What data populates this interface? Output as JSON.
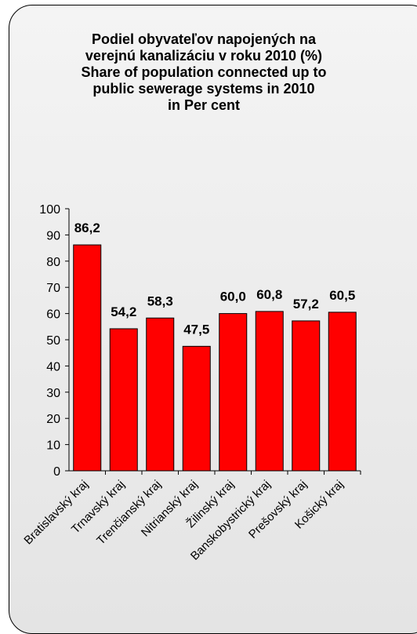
{
  "chart_data": {
    "type": "bar",
    "title": [
      "Podiel obyvateľov napojených na",
      "verejnú kanalizáciu v roku 2010 (%)",
      "Share of population connected up to",
      "public sewerage systems in 2010",
      "in Per cent"
    ],
    "categories": [
      "Bratislavský kraj",
      "Trnavský kraj",
      "Trenčianský kraj",
      "Nitrianský kraj",
      "Žilinský kraj",
      "Banskobystrický kraj",
      "Prešovský kraj",
      "Košický kraj"
    ],
    "values": [
      86.2,
      54.2,
      58.3,
      47.5,
      60.0,
      60.8,
      57.2,
      60.5
    ],
    "data_labels": [
      "86,2",
      "54,2",
      "58,3",
      "47,5",
      "60,0",
      "60,8",
      "57,2",
      "60,5"
    ],
    "ylim": [
      0,
      100
    ],
    "yticks": [
      0,
      10,
      20,
      30,
      40,
      50,
      60,
      70,
      80,
      90,
      100
    ],
    "bar_color": "#ff0000",
    "grid": false,
    "legend": false
  }
}
